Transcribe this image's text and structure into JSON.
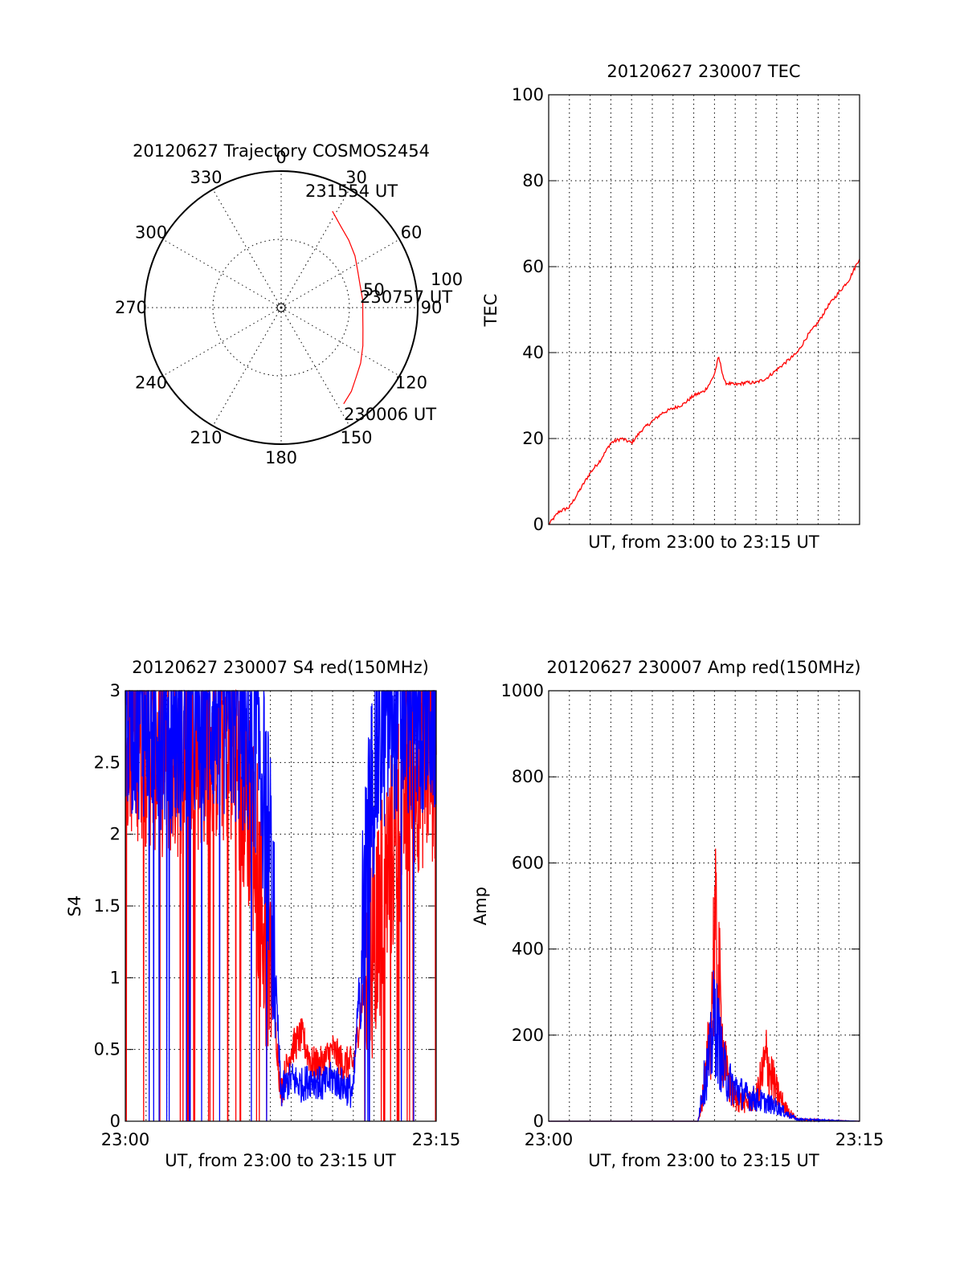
{
  "chart_data": [
    {
      "id": "polar",
      "type": "scatter",
      "title": "20120627 Trajectory COSMOS2454",
      "azimuth_labels": [
        "0",
        "30",
        "60",
        "90",
        "120",
        "150",
        "180",
        "210",
        "240",
        "270",
        "300",
        "330"
      ],
      "radius_labels": [
        "50",
        "100"
      ],
      "radius_max": 100,
      "series": [
        {
          "color": "#ff0000",
          "points": [
            {
              "az": 28,
              "r": 80
            },
            {
              "az": 36,
              "r": 74
            },
            {
              "az": 45,
              "r": 70
            },
            {
              "az": 55,
              "r": 66
            },
            {
              "az": 65,
              "r": 62
            },
            {
              "az": 75,
              "r": 60
            },
            {
              "az": 85,
              "r": 60
            },
            {
              "az": 95,
              "r": 60
            },
            {
              "az": 105,
              "r": 62
            },
            {
              "az": 115,
              "r": 66
            },
            {
              "az": 125,
              "r": 71
            },
            {
              "az": 133,
              "r": 75
            },
            {
              "az": 140,
              "r": 80
            },
            {
              "az": 147,
              "r": 84
            }
          ]
        }
      ],
      "annotations": [
        {
          "text": "231554 UT",
          "az": 28,
          "r": 80
        },
        {
          "text": "230757 UT",
          "az": 95,
          "r": 60
        },
        {
          "text": "230006 UT",
          "az": 147,
          "r": 84
        }
      ]
    },
    {
      "id": "tec",
      "type": "line",
      "title": "20120627 230007 TEC",
      "xlabel": "UT, from 23:00 to 23:15 UT",
      "ylabel": "TEC",
      "xlim": [
        0,
        15
      ],
      "ylim": [
        0,
        100
      ],
      "yticks": [
        0,
        20,
        40,
        60,
        80,
        100
      ],
      "xtick_labels": [],
      "grid": true,
      "series": [
        {
          "color": "#ff0000",
          "x": [
            0,
            0.5,
            1,
            1.5,
            2,
            2.5,
            3,
            3.5,
            4,
            4.5,
            5,
            5.5,
            6,
            6.5,
            7,
            7.5,
            7.8,
            8,
            8.2,
            8.5,
            9,
            9.5,
            10,
            10.5,
            11,
            11.5,
            12,
            12.5,
            13,
            13.5,
            14,
            14.5,
            15
          ],
          "y": [
            0,
            3,
            4,
            8,
            12,
            15,
            19,
            20,
            19,
            22,
            24,
            26,
            27,
            28,
            30,
            31,
            33,
            35,
            39,
            33,
            32.5,
            33,
            33,
            34,
            36,
            38,
            40,
            44,
            47,
            51,
            54,
            57,
            62
          ]
        }
      ]
    },
    {
      "id": "s4",
      "type": "line",
      "title": "20120627 230007 S4 red(150MHz)",
      "xlabel": "UT, from 23:00 to 23:15 UT",
      "ylabel": "S4",
      "xlim": [
        0,
        15
      ],
      "ylim": [
        0,
        3
      ],
      "yticks": [
        0,
        0.5,
        1,
        1.5,
        2,
        2.5,
        3
      ],
      "ytick_labels": [
        "0",
        "0.5",
        "1",
        "1.5",
        "2",
        "2.5",
        "3"
      ],
      "xtick_labels": [
        "23:00",
        "23:15"
      ],
      "grid": true,
      "series": [
        {
          "color": "#ff0000",
          "x": [
            0,
            1,
            2,
            3,
            4,
            5,
            5.5,
            6,
            6.5,
            7,
            7.5,
            8,
            8.5,
            9,
            9.5,
            10,
            10.5,
            11,
            11.5,
            12,
            12.5,
            13,
            13.5,
            14,
            15
          ],
          "y": [
            2.8,
            2.7,
            2.6,
            2.6,
            2.7,
            2.7,
            2.4,
            2.2,
            1.6,
            1.1,
            0.2,
            0.5,
            0.6,
            0.4,
            0.4,
            0.5,
            0.4,
            0.4,
            0.9,
            1.3,
            1.6,
            2.0,
            2.3,
            2.5,
            2.6
          ]
        },
        {
          "color": "#0000ff",
          "x": [
            0,
            1,
            2,
            3,
            4,
            5,
            5.5,
            6,
            6.5,
            7,
            7.5,
            8,
            8.5,
            9,
            9.5,
            10,
            10.5,
            11,
            11.5,
            12,
            12.5,
            13,
            13.5,
            14,
            15
          ],
          "y": [
            2.9,
            2.9,
            2.8,
            2.8,
            2.9,
            2.9,
            2.8,
            2.7,
            2.6,
            1.8,
            0.2,
            0.3,
            0.25,
            0.3,
            0.25,
            0.3,
            0.25,
            0.2,
            1.5,
            2.5,
            2.8,
            2.9,
            2.9,
            2.9,
            2.9
          ]
        }
      ]
    },
    {
      "id": "amp",
      "type": "line",
      "title": "20120627 230007 Amp red(150MHz)",
      "xlabel": "UT, from 23:00 to 23:15 UT",
      "ylabel": "Amp",
      "xlim": [
        0,
        15
      ],
      "ylim": [
        0,
        1000
      ],
      "yticks": [
        0,
        200,
        400,
        600,
        800,
        1000
      ],
      "xtick_labels": [
        "23:00",
        "23:15"
      ],
      "grid": true,
      "series": [
        {
          "color": "#ff0000",
          "x": [
            0,
            7.2,
            7.4,
            7.6,
            7.8,
            8.0,
            8.2,
            8.4,
            8.6,
            8.8,
            9.0,
            9.5,
            10.0,
            10.5,
            11.0,
            11.5,
            12.0,
            15
          ],
          "y": [
            0,
            0,
            60,
            120,
            250,
            500,
            380,
            200,
            120,
            80,
            60,
            50,
            60,
            170,
            80,
            30,
            5,
            0
          ]
        },
        {
          "color": "#0000ff",
          "x": [
            0,
            7.2,
            7.4,
            7.6,
            7.8,
            8.0,
            8.2,
            8.4,
            8.6,
            8.8,
            9.0,
            9.5,
            10.0,
            10.5,
            11.0,
            11.5,
            12.0,
            15
          ],
          "y": [
            0,
            0,
            80,
            130,
            180,
            290,
            220,
            150,
            120,
            100,
            90,
            70,
            60,
            50,
            40,
            20,
            5,
            0
          ]
        }
      ]
    }
  ]
}
